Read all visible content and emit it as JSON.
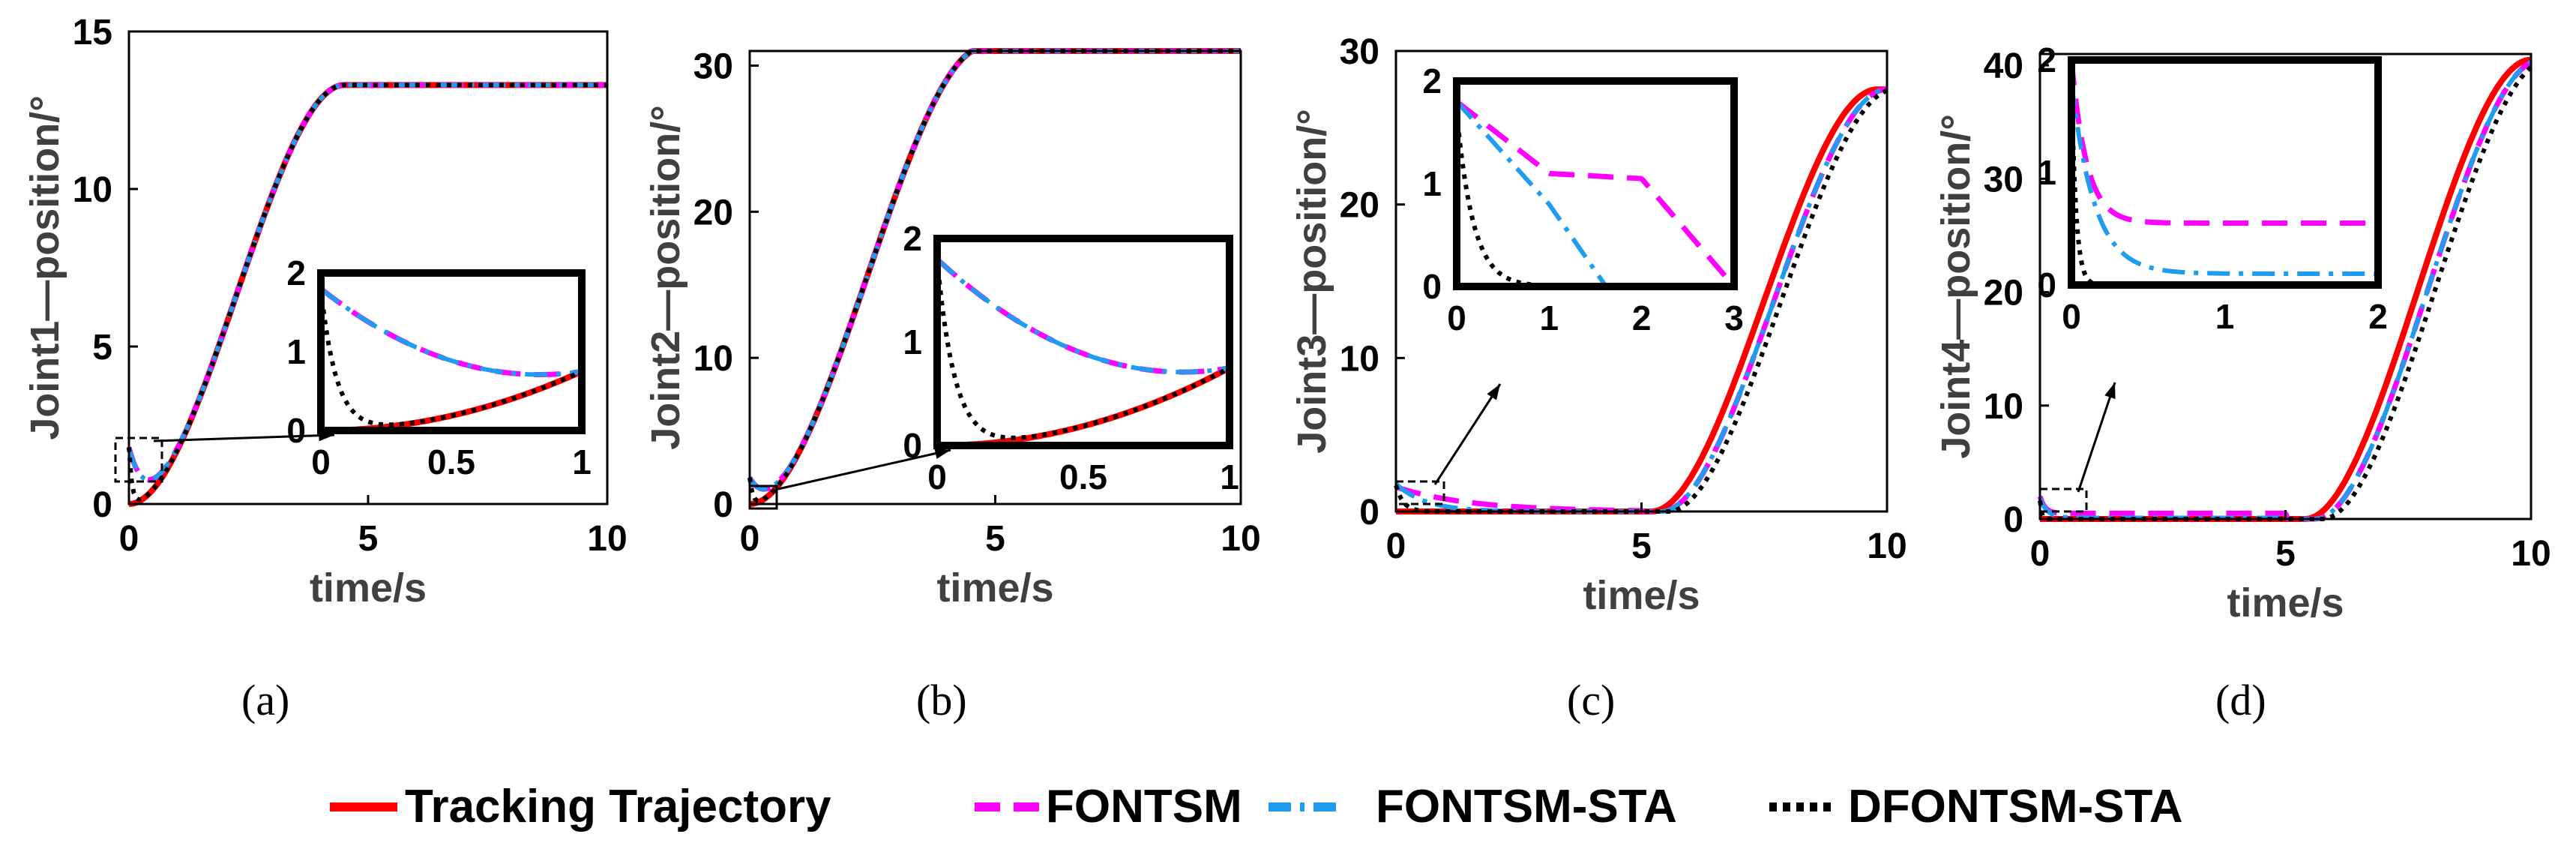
{
  "legend": [
    {
      "label": "Tracking Trajectory",
      "color": "#ff0000",
      "style": "solid"
    },
    {
      "label": "FONTSM",
      "color": "#ff00ff",
      "style": "dash"
    },
    {
      "label": "FONTSM-STA",
      "color": "#1e9cf0",
      "style": "dashdot"
    },
    {
      "label": "DFONTSM-STA",
      "color": "#000000",
      "style": "dot"
    }
  ],
  "chart_data": [
    {
      "type": "line",
      "panel_label": "(a)",
      "xlabel": "time/s",
      "ylabel": "Joint1—position/°",
      "xlim": [
        0,
        10
      ],
      "ylim": [
        0,
        15
      ],
      "xticks": [
        "0",
        "5",
        "10"
      ],
      "yticks": [
        "0",
        "5",
        "10",
        "15"
      ],
      "series_desc": {
        "tracking": "smooth S-curve 0 to 13.3 between t=0 and t=4.5",
        "fontsm": "starts 1.8, converges near t=1",
        "fontsm_sta": "starts 1.8, converges near t=1",
        "dfontsm_sta": "starts 1.8, converges near t=0.2"
      },
      "final_value": 13.3,
      "inset": {
        "xlim": [
          0,
          1
        ],
        "ylim": [
          0,
          2
        ],
        "xticks": [
          "0",
          "0.5",
          "1"
        ],
        "yticks": [
          "0",
          "1",
          "2"
        ]
      }
    },
    {
      "type": "line",
      "panel_label": "(b)",
      "xlabel": "time/s",
      "ylabel": "Joint2—position/°",
      "xlim": [
        0,
        10
      ],
      "ylim": [
        0,
        31
      ],
      "xticks": [
        "0",
        "5",
        "10"
      ],
      "yticks": [
        "0",
        "10",
        "20",
        "30"
      ],
      "final_value": 31.3,
      "inset": {
        "xlim": [
          0,
          1
        ],
        "ylim": [
          0,
          2
        ],
        "xticks": [
          "0",
          "0.5",
          "1"
        ],
        "yticks": [
          "0",
          "1",
          "2"
        ]
      }
    },
    {
      "type": "line",
      "panel_label": "(c)",
      "xlabel": "time/s",
      "ylabel": "Joint3—position/°",
      "xlim": [
        0,
        10
      ],
      "ylim": [
        0,
        30
      ],
      "xticks": [
        "0",
        "5",
        "10"
      ],
      "yticks": [
        "0",
        "10",
        "20",
        "30"
      ],
      "final_value": 27.5,
      "inset": {
        "xlim": [
          0,
          3
        ],
        "ylim": [
          0,
          2
        ],
        "xticks": [
          "0",
          "1",
          "2",
          "3"
        ],
        "yticks": [
          "0",
          "1",
          "2"
        ]
      }
    },
    {
      "type": "line",
      "panel_label": "(d)",
      "xlabel": "time/s",
      "ylabel": "Joint4—position/°",
      "xlim": [
        0,
        10
      ],
      "ylim": [
        0,
        41
      ],
      "xticks": [
        "0",
        "5",
        "10"
      ],
      "yticks": [
        "0",
        "10",
        "20",
        "30",
        "40"
      ],
      "final_value": 40.5,
      "inset": {
        "xlim": [
          0,
          2
        ],
        "ylim": [
          0,
          2
        ],
        "xticks": [
          "0",
          "1",
          "2"
        ],
        "yticks": [
          "0",
          "1",
          "2"
        ]
      }
    }
  ]
}
